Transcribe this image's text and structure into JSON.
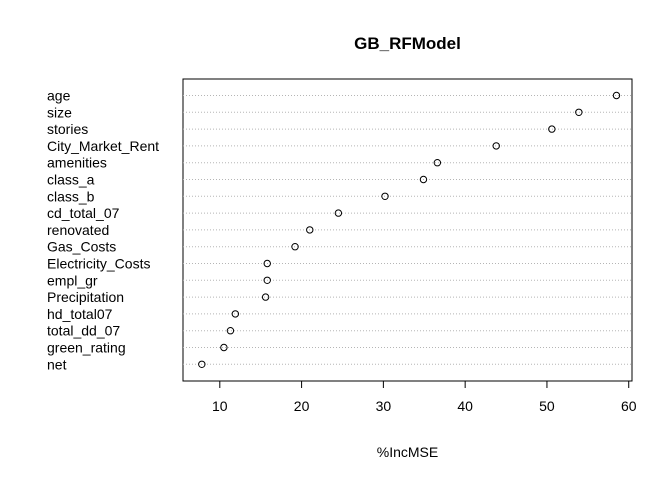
{
  "chart_data": {
    "type": "scatter",
    "variant": "dotchart",
    "title": "GB_RFModel",
    "xlabel": "%IncMSE",
    "ylabel": "",
    "xlim": [
      5.5,
      60.4
    ],
    "x_ticks": [
      "10",
      "20",
      "30",
      "40",
      "50",
      "60"
    ],
    "grid": "dotted horizontal lines per row",
    "categories": [
      "age",
      "size",
      "stories",
      "City_Market_Rent",
      "amenities",
      "class_a",
      "class_b",
      "cd_total_07",
      "renovated",
      "Gas_Costs",
      "Electricity_Costs",
      "empl_gr",
      "Precipitation",
      "hd_total07",
      "total_dd_07",
      "green_rating",
      "net"
    ],
    "values": [
      58.5,
      53.9,
      50.6,
      43.8,
      36.6,
      34.9,
      30.2,
      24.5,
      21.0,
      19.2,
      15.8,
      15.8,
      15.6,
      11.9,
      11.3,
      10.5,
      7.8
    ]
  }
}
